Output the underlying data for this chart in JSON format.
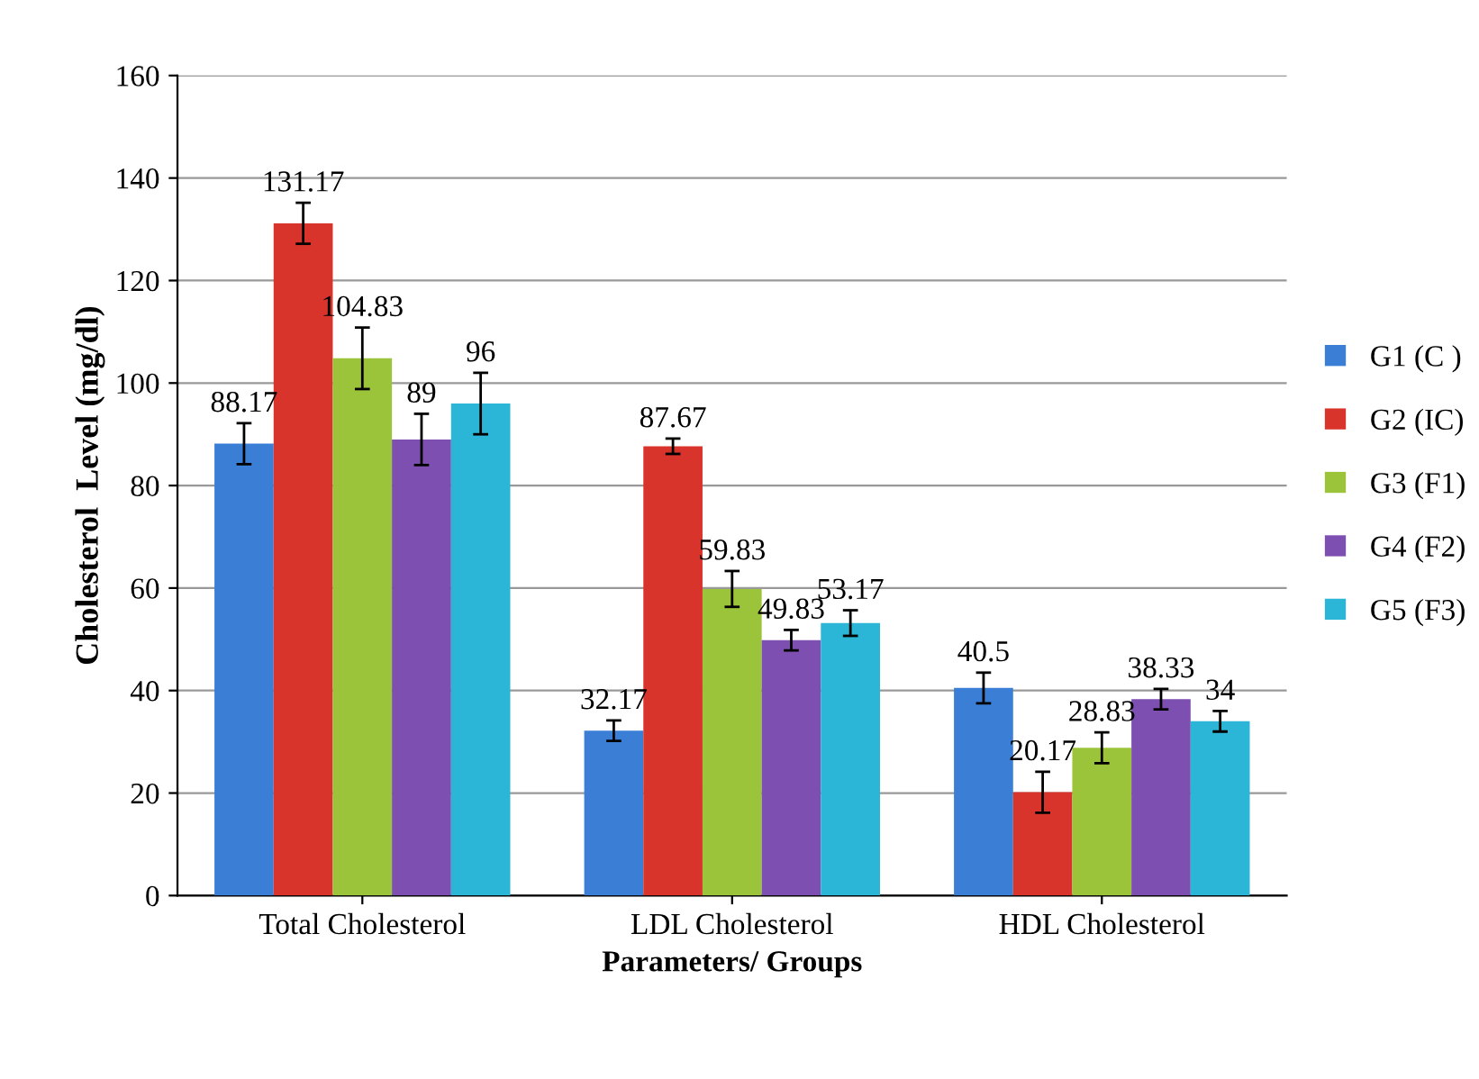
{
  "chart_data": {
    "type": "bar",
    "xlabel": "Parameters/ Groups",
    "ylabel": "Cholesterol  Level (mg/dl)",
    "categories": [
      "Total Cholesterol",
      "LDL Cholesterol",
      "HDL Cholesterol"
    ],
    "series": [
      {
        "name": "G1 (C )",
        "color": "#3a7fd5",
        "values": [
          88.17,
          32.17,
          40.5
        ],
        "errors": [
          4,
          2,
          3
        ]
      },
      {
        "name": "G2 (IC)",
        "color": "#d9342b",
        "values": [
          131.17,
          87.67,
          20.17
        ],
        "errors": [
          4,
          1.5,
          4
        ]
      },
      {
        "name": "G3 (F1)",
        "color": "#9cc43a",
        "values": [
          104.83,
          59.83,
          28.83
        ],
        "errors": [
          6,
          3.5,
          3
        ]
      },
      {
        "name": "G4 (F2)",
        "color": "#7d4fb0",
        "values": [
          89,
          49.83,
          38.33
        ],
        "errors": [
          5,
          2,
          2
        ]
      },
      {
        "name": "G5 (F3)",
        "color": "#2bb5d6",
        "values": [
          96,
          53.17,
          34
        ],
        "errors": [
          6,
          2.5,
          2
        ]
      }
    ],
    "ylim": [
      0,
      160
    ],
    "yticks": [
      0,
      20,
      40,
      60,
      80,
      100,
      120,
      140,
      160
    ],
    "grid": "y",
    "legend": "right",
    "data_labels": true
  }
}
